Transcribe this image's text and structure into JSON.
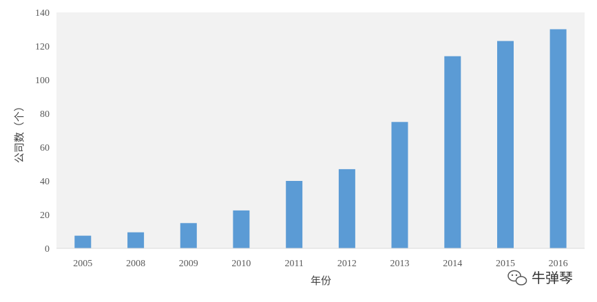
{
  "chart_data": {
    "type": "bar",
    "title": "",
    "xlabel": "年份",
    "ylabel": "公司数（个）",
    "categories": [
      "2005",
      "2008",
      "2009",
      "2010",
      "2011",
      "2012",
      "2013",
      "2014",
      "2015",
      "2016"
    ],
    "values": [
      7.5,
      9.5,
      15,
      22.5,
      40,
      47,
      75,
      114,
      123,
      130
    ],
    "ylim": [
      0,
      140
    ],
    "yticks": [
      0,
      20,
      40,
      60,
      80,
      100,
      120,
      140
    ],
    "grid": false,
    "legend": "none",
    "colors": {
      "bar": "#5b9bd5",
      "plot_bg": "#f2f2f2"
    }
  },
  "watermark": {
    "icon": "wechat-icon",
    "text": "牛弹琴"
  }
}
